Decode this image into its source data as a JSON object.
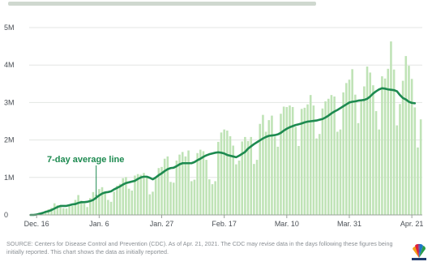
{
  "colors": {
    "bar": "#bfe3b6",
    "line": "#1d8a50",
    "grid": "#e3e6e3",
    "axis": "#9aa19a"
  },
  "chart_data": {
    "type": "bar",
    "title": "",
    "xlabel": "",
    "ylabel": "",
    "ylim": [
      0,
      5000000
    ],
    "yticks": [
      {
        "value": 0,
        "label": "0"
      },
      {
        "value": 1000000,
        "label": "1M"
      },
      {
        "value": 2000000,
        "label": "2M"
      },
      {
        "value": 3000000,
        "label": "3M"
      },
      {
        "value": 4000000,
        "label": "4M"
      },
      {
        "value": 5000000,
        "label": "5M"
      }
    ],
    "xticks": [
      {
        "index": 2,
        "label": "Dec. 16"
      },
      {
        "index": 23,
        "label": "Jan. 6"
      },
      {
        "index": 44,
        "label": "Jan. 27"
      },
      {
        "index": 65,
        "label": "Feb. 17"
      },
      {
        "index": 86,
        "label": "Mar. 10"
      },
      {
        "index": 107,
        "label": "Mar. 31"
      },
      {
        "index": 128,
        "label": "Apr. 21"
      }
    ],
    "grid": true,
    "series": [
      {
        "kind": "bar",
        "values": [
          0,
          0,
          10000,
          60000,
          80000,
          110000,
          150000,
          190000,
          310000,
          260000,
          240000,
          180000,
          170000,
          280000,
          240000,
          400000,
          530000,
          380000,
          300000,
          210000,
          450000,
          610000,
          540000,
          690000,
          740000,
          620000,
          400000,
          350000,
          620000,
          780000,
          830000,
          980000,
          1010000,
          700000,
          650000,
          1050000,
          1090000,
          1070000,
          1120000,
          1030000,
          550000,
          620000,
          1010000,
          1250000,
          1280000,
          1500000,
          1560000,
          880000,
          860000,
          1450000,
          1610000,
          1680000,
          1560000,
          1720000,
          900000,
          940000,
          1650000,
          1740000,
          1700000,
          1470000,
          950000,
          820000,
          900000,
          1950000,
          2200000,
          2280000,
          2250000,
          2100000,
          1850000,
          1350000,
          1450000,
          1960000,
          2080000,
          1970000,
          2080000,
          1360000,
          1470000,
          2430000,
          2670000,
          2220000,
          2530000,
          2650000,
          2090000,
          1820000,
          2700000,
          2890000,
          2880000,
          2920000,
          2880000,
          2350000,
          1840000,
          2830000,
          2860000,
          2950000,
          3200000,
          2920000,
          2040000,
          2160000,
          2840000,
          3030000,
          3100000,
          3200000,
          3160000,
          2220000,
          2280000,
          3270000,
          3520000,
          3610000,
          3890000,
          3210000,
          2450000,
          3050000,
          3430000,
          3960000,
          3800000,
          3460000,
          2770000,
          2280000,
          3700000,
          3640000,
          3900000,
          4630000,
          3880000,
          2390000,
          2960000,
          3580000,
          4240000,
          3980000,
          3630000,
          2870000,
          1800000,
          2550000
        ],
        "value_label": ""
      },
      {
        "kind": "line",
        "values": [
          0,
          0,
          10000,
          30000,
          50000,
          80000,
          100000,
          130000,
          170000,
          210000,
          240000,
          240000,
          240000,
          260000,
          280000,
          290000,
          320000,
          340000,
          340000,
          350000,
          370000,
          400000,
          460000,
          520000,
          570000,
          600000,
          610000,
          630000,
          680000,
          720000,
          760000,
          810000,
          850000,
          870000,
          890000,
          910000,
          960000,
          1000000,
          1020000,
          1020000,
          990000,
          950000,
          1000000,
          1060000,
          1110000,
          1170000,
          1220000,
          1250000,
          1260000,
          1300000,
          1350000,
          1380000,
          1380000,
          1380000,
          1380000,
          1410000,
          1460000,
          1500000,
          1550000,
          1590000,
          1620000,
          1640000,
          1660000,
          1670000,
          1660000,
          1640000,
          1600000,
          1580000,
          1560000,
          1540000,
          1580000,
          1630000,
          1680000,
          1770000,
          1830000,
          1890000,
          1940000,
          1990000,
          2040000,
          2080000,
          2110000,
          2120000,
          2130000,
          2150000,
          2190000,
          2250000,
          2300000,
          2340000,
          2370000,
          2400000,
          2420000,
          2440000,
          2470000,
          2490000,
          2500000,
          2510000,
          2520000,
          2540000,
          2560000,
          2600000,
          2650000,
          2710000,
          2760000,
          2800000,
          2850000,
          2900000,
          2950000,
          3000000,
          3020000,
          3030000,
          3050000,
          3060000,
          3070000,
          3100000,
          3160000,
          3240000,
          3300000,
          3350000,
          3380000,
          3370000,
          3350000,
          3340000,
          3330000,
          3300000,
          3200000,
          3120000,
          3080000,
          3020000,
          2990000,
          2980000
        ],
        "value_label": "7-day average line"
      }
    ],
    "annotations": [
      {
        "text": "7-day average line",
        "index": 34,
        "value": 870000
      }
    ]
  },
  "source_note": "SOURCE: Centers for Disease Control and Prevention (CDC). As of Apr. 21, 2021. The CDC may revise data in the days following these figures being initially reported. This chart shows the data as initially reported.",
  "logo": {
    "icon": "peacock-logo-icon"
  }
}
